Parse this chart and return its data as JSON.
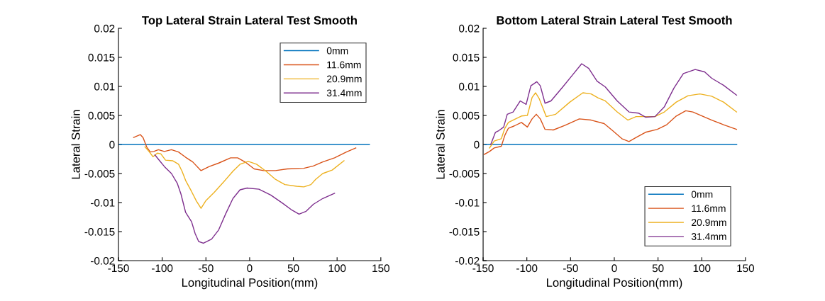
{
  "chart_data": [
    {
      "type": "line",
      "title": "Top Lateral Strain Lateral Test Smooth",
      "xlabel": "Longitudinal Position(mm)",
      "ylabel": "Lateral Strain",
      "xlim": [
        -150,
        150
      ],
      "xticks": [
        -150,
        -100,
        -50,
        0,
        50,
        100,
        150
      ],
      "ylim": [
        -0.02,
        0.02
      ],
      "yticks": [
        -0.02,
        -0.015,
        -0.01,
        -0.005,
        0,
        0.005,
        0.01,
        0.015,
        0.02
      ],
      "grid": false,
      "legend": "top right",
      "series": [
        {
          "name": "0mm",
          "color": "#0072bd",
          "x": [
            -149,
            137
          ],
          "values": [
            0,
            0
          ]
        },
        {
          "name": "11.6mm",
          "color": "#d95319",
          "x": [
            -132.7,
            -125.1,
            -121.9,
            -117.8,
            -113.7,
            -109.7,
            -104.3,
            -97.5,
            -89.4,
            -81.3,
            -73.2,
            -65.1,
            -55.6,
            -46.2,
            -35.4,
            -21.8,
            -13.7,
            -4.3,
            5.2,
            16.0,
            29.5,
            43.0,
            61.9,
            72.8,
            83.6,
            97.1,
            110.6,
            121.4
          ],
          "values": [
            0.0012,
            0.0017,
            0.0012,
            -0.0004,
            -0.0013,
            -0.0012,
            -0.0009,
            -0.0012,
            -0.0009,
            -0.0013,
            -0.0022,
            -0.003,
            -0.0045,
            -0.0038,
            -0.0032,
            -0.0023,
            -0.0023,
            -0.0031,
            -0.0042,
            -0.0045,
            -0.0045,
            -0.0042,
            -0.0041,
            -0.0037,
            -0.003,
            -0.0023,
            -0.0013,
            -0.0006
          ]
        },
        {
          "name": "20.9mm",
          "color": "#edb120",
          "x": [
            -119.7,
            -115.1,
            -110.5,
            -105.6,
            -101.6,
            -96.2,
            -88.1,
            -81.3,
            -77.3,
            -73.2,
            -66.4,
            -61.0,
            -55.6,
            -50.2,
            -40.8,
            -30.0,
            -19.1,
            -11.0,
            -1.6,
            7.9,
            18.7,
            29.5,
            40.3,
            53.8,
            62.0,
            70.1,
            75.5,
            83.6,
            94.4,
            107.9
          ],
          "values": [
            -0.0004,
            -0.0012,
            -0.0021,
            -0.0015,
            -0.0016,
            -0.0027,
            -0.0028,
            -0.0034,
            -0.0046,
            -0.0062,
            -0.0081,
            -0.0097,
            -0.011,
            -0.0097,
            -0.0083,
            -0.0065,
            -0.0046,
            -0.0034,
            -0.0029,
            -0.0034,
            -0.0046,
            -0.006,
            -0.0069,
            -0.0072,
            -0.0073,
            -0.0069,
            -0.006,
            -0.005,
            -0.0044,
            -0.0028
          ]
        },
        {
          "name": "31.4mm",
          "color": "#7e2f8e",
          "x": [
            -108.3,
            -102.9,
            -97.5,
            -89.4,
            -82.7,
            -78.6,
            -73.2,
            -66.4,
            -62.4,
            -58.3,
            -52.9,
            -43.5,
            -35.4,
            -27.3,
            -19.1,
            -11.0,
            -2.9,
            10.6,
            24.1,
            37.6,
            48.4,
            56.5,
            64.6,
            72.8,
            83.6,
            97.1
          ],
          "values": [
            -0.0018,
            -0.0028,
            -0.0038,
            -0.005,
            -0.0067,
            -0.0085,
            -0.0117,
            -0.0133,
            -0.0153,
            -0.0167,
            -0.017,
            -0.0163,
            -0.0147,
            -0.0119,
            -0.0093,
            -0.0078,
            -0.0075,
            -0.0077,
            -0.0087,
            -0.0101,
            -0.0113,
            -0.012,
            -0.0115,
            -0.0103,
            -0.0093,
            -0.0084
          ]
        }
      ]
    },
    {
      "type": "line",
      "title": "Bottom Lateral Strain Lateral Test Smooth",
      "xlabel": "Longitudinal Position(mm)",
      "ylabel": "Lateral Strain",
      "xlim": [
        -150,
        150
      ],
      "xticks": [
        -150,
        -100,
        -50,
        0,
        50,
        100,
        150
      ],
      "ylim": [
        -0.02,
        0.02
      ],
      "yticks": [
        -0.02,
        -0.015,
        -0.01,
        -0.005,
        0,
        0.005,
        0.01,
        0.015,
        0.02
      ],
      "grid": false,
      "legend": "bottom right",
      "series": [
        {
          "name": "0mm",
          "color": "#0072bd",
          "x": [
            -148,
            140
          ],
          "values": [
            0,
            0
          ]
        },
        {
          "name": "11.6mm",
          "color": "#d95319",
          "x": [
            -148.6,
            -142.7,
            -137.3,
            -129.2,
            -125.1,
            -121.1,
            -114.3,
            -106.2,
            -99.4,
            -94.0,
            -89.2,
            -84.6,
            -79.2,
            -69.7,
            -56.2,
            -40.0,
            -26.5,
            -11.6,
            -2.1,
            8.7,
            16.8,
            24.9,
            35.7,
            49.2,
            60.0,
            70.9,
            81.7,
            89.8,
            100.6,
            111.4,
            124.9,
            139.8
          ],
          "values": [
            -0.0017,
            -0.0012,
            -0.0006,
            -0.0003,
            0.0016,
            0.0028,
            0.0032,
            0.0038,
            0.003,
            0.0044,
            0.0052,
            0.0044,
            0.0026,
            0.0025,
            0.0033,
            0.0044,
            0.0042,
            0.0036,
            0.0024,
            0.001,
            0.0005,
            0.0012,
            0.0021,
            0.0026,
            0.0034,
            0.0049,
            0.0058,
            0.0056,
            0.0049,
            0.0042,
            0.0034,
            0.0026
          ]
        },
        {
          "name": "20.9mm",
          "color": "#edb120",
          "x": [
            -142.7,
            -137.3,
            -129.2,
            -125.1,
            -121.1,
            -112.9,
            -106.2,
            -99.4,
            -94.0,
            -90.0,
            -85.9,
            -77.8,
            -67.0,
            -50.8,
            -35.9,
            -26.5,
            -18.3,
            -10.3,
            3.3,
            15.4,
            24.9,
            35.7,
            46.5,
            57.3,
            70.9,
            84.4,
            97.9,
            111.4,
            124.9,
            139.8
          ],
          "values": [
            -0.0006,
            0.0006,
            0.001,
            0.0028,
            0.0038,
            0.0044,
            0.0049,
            0.005,
            0.0081,
            0.0089,
            0.0079,
            0.0048,
            0.0052,
            0.0073,
            0.0089,
            0.0087,
            0.008,
            0.0075,
            0.0056,
            0.0042,
            0.0048,
            0.0048,
            0.0048,
            0.0056,
            0.0073,
            0.0084,
            0.0087,
            0.0083,
            0.0073,
            0.0056
          ]
        },
        {
          "name": "31.4mm",
          "color": "#7e2f8e",
          "x": [
            -141.3,
            -135.9,
            -131.9,
            -126.5,
            -122.4,
            -115.7,
            -107.5,
            -100.8,
            -95.4,
            -88.6,
            -84.6,
            -79.2,
            -72.4,
            -58.9,
            -48.1,
            -37.3,
            -29.2,
            -19.7,
            -10.3,
            3.3,
            16.8,
            27.6,
            35.7,
            46.5,
            57.3,
            68.2,
            79.0,
            92.5,
            103.3,
            111.4,
            124.9,
            139.8
          ],
          "values": [
            0.0,
            0.0021,
            0.0024,
            0.003,
            0.0052,
            0.0056,
            0.0075,
            0.0069,
            0.0101,
            0.0108,
            0.0101,
            0.0071,
            0.0075,
            0.0099,
            0.0119,
            0.0139,
            0.0131,
            0.0109,
            0.0099,
            0.0075,
            0.0056,
            0.0054,
            0.0047,
            0.0048,
            0.0065,
            0.0097,
            0.0122,
            0.0129,
            0.0125,
            0.0114,
            0.0102,
            0.0085
          ]
        }
      ]
    }
  ]
}
